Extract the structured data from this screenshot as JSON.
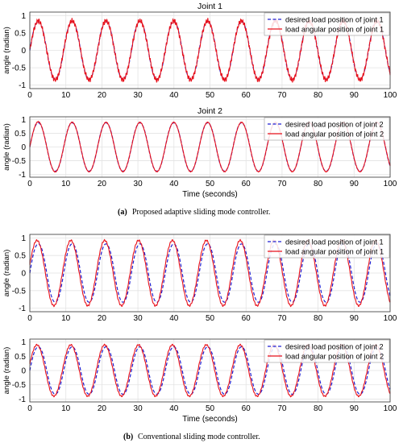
{
  "colors": {
    "desired": "#1f1fd2",
    "actual": "#e8101a",
    "grid": "#e3e3e3",
    "axis": "#333333"
  },
  "captions": {
    "a_label": "(a)",
    "a_text": "Proposed adaptive sliding mode controller.",
    "b_label": "(b)",
    "b_text": "Conventional sliding mode controller."
  },
  "chart_data": [
    {
      "type": "line",
      "id": "a1",
      "title": "Joint 1",
      "xlabel": "",
      "ylabel": "angle (radian)",
      "xlim": [
        0,
        100
      ],
      "ylim": [
        -1.1,
        1.1
      ],
      "xticks": [
        0,
        10,
        20,
        30,
        40,
        50,
        60,
        70,
        80,
        90,
        100
      ],
      "yticks": [
        -1,
        -0.5,
        0,
        0.5,
        1
      ],
      "grid": true,
      "legend_position": "top-right",
      "period": 9.4,
      "series": [
        {
          "name": "desired load position of joint 1",
          "style": "dashed",
          "color": "#1f1fd2",
          "amplitude": 0.85
        },
        {
          "name": "load angular position of joint 1",
          "style": "solid",
          "color": "#e8101a",
          "amplitude": 0.85
        }
      ]
    },
    {
      "type": "line",
      "id": "a2",
      "title": "Joint 2",
      "xlabel": "Time (seconds)",
      "ylabel": "angle (radian)",
      "xlim": [
        0,
        100
      ],
      "ylim": [
        -1.1,
        1.1
      ],
      "xticks": [
        0,
        10,
        20,
        30,
        40,
        50,
        60,
        70,
        80,
        90,
        100
      ],
      "yticks": [
        -1,
        -0.5,
        0,
        0.5,
        1
      ],
      "grid": true,
      "legend_position": "top-right",
      "period": 9.4,
      "series": [
        {
          "name": "desired load position of joint 2",
          "style": "dashed",
          "color": "#1f1fd2",
          "amplitude": 0.9
        },
        {
          "name": "load angular position of joint 2",
          "style": "solid",
          "color": "#e8101a",
          "amplitude": 0.9
        }
      ]
    },
    {
      "type": "line",
      "id": "b1",
      "title": "",
      "xlabel": "",
      "ylabel": "angle (radian)",
      "xlim": [
        0,
        100
      ],
      "ylim": [
        -1.1,
        1.1
      ],
      "xticks": [
        0,
        10,
        20,
        30,
        40,
        50,
        60,
        70,
        80,
        90,
        100
      ],
      "yticks": [
        -1,
        -0.5,
        0,
        0.5,
        1
      ],
      "grid": true,
      "legend_position": "top-right",
      "period": 9.4,
      "series": [
        {
          "name": "desired load position of joint 1",
          "style": "dashed",
          "color": "#1f1fd2",
          "amplitude": 0.85
        },
        {
          "name": "load angular position of joint 1",
          "style": "solid",
          "color": "#e8101a",
          "amplitude": 0.93
        }
      ]
    },
    {
      "type": "line",
      "id": "b2",
      "title": "",
      "xlabel": "Time (seconds)",
      "ylabel": "angle (radian)",
      "xlim": [
        0,
        100
      ],
      "ylim": [
        -1.1,
        1.1
      ],
      "xticks": [
        0,
        10,
        20,
        30,
        40,
        50,
        60,
        70,
        80,
        90,
        100
      ],
      "yticks": [
        -1,
        -0.5,
        0,
        0.5,
        1
      ],
      "grid": true,
      "legend_position": "top-right",
      "period": 9.4,
      "series": [
        {
          "name": "desired load position of joint 2",
          "style": "dashed",
          "color": "#1f1fd2",
          "amplitude": 0.85
        },
        {
          "name": "load angular position of joint 2",
          "style": "solid",
          "color": "#e8101a",
          "amplitude": 0.9
        }
      ]
    }
  ]
}
